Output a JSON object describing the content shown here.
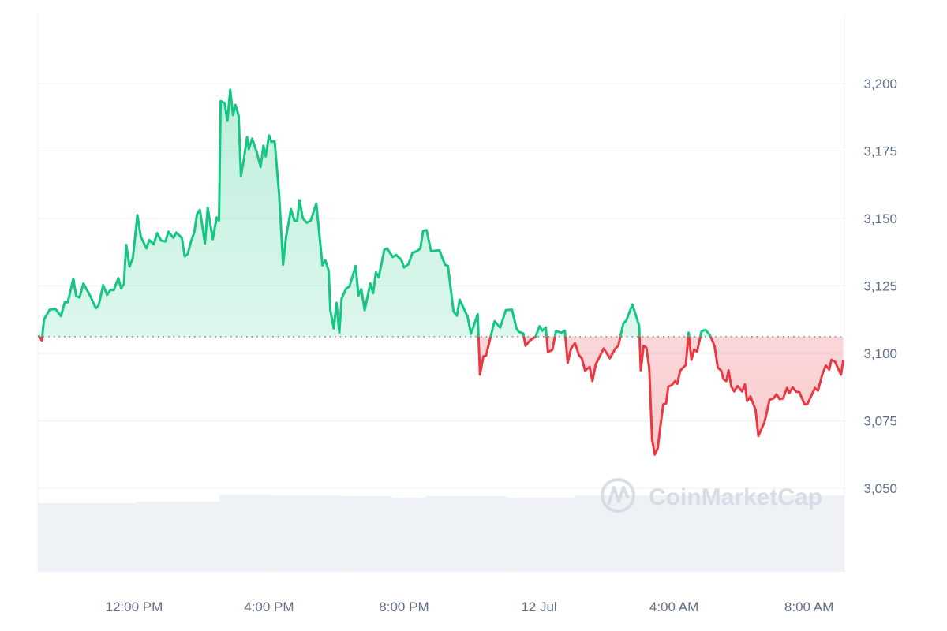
{
  "chart_data": {
    "type": "line",
    "title": "",
    "xlabel": "",
    "ylabel": "",
    "ylim": [
      3025,
      3225
    ],
    "y_ticks": [
      "3,200",
      "3,175",
      "3,150",
      "3,125",
      "3,100",
      "3,075",
      "3,050"
    ],
    "y_tick_values": [
      3200,
      3175,
      3150,
      3125,
      3100,
      3075,
      3050
    ],
    "x_ticks": [
      "12:00 PM",
      "4:00 PM",
      "8:00 PM",
      "12 Jul",
      "4:00 AM",
      "8:00 AM"
    ],
    "x_tick_times": [
      "11 Jul 12:00",
      "11 Jul 16:00",
      "11 Jul 20:00",
      "12 Jul 00:00",
      "12 Jul 04:00",
      "12 Jul 08:00"
    ],
    "xlim": [
      "11 Jul 09:09",
      "12 Jul 09:03"
    ],
    "grid": "horizontal",
    "y_axis_side": "right",
    "baseline": 3106.2,
    "colors": {
      "above": "#16c784",
      "below": "#ea3943",
      "volume": "#eef1f5",
      "baseline": "#808a9d"
    },
    "watermark": "CoinMarketCap",
    "points": [
      [
        "11 Jul 09:10",
        3106.7
      ],
      [
        "11 Jul 09:16",
        3104.8
      ],
      [
        "11 Jul 09:20",
        3112.6
      ],
      [
        "11 Jul 09:30",
        3116.2
      ],
      [
        "11 Jul 09:40",
        3116.5
      ],
      [
        "11 Jul 09:50",
        3113.8
      ],
      [
        "11 Jul 09:57",
        3119.1
      ],
      [
        "11 Jul 10:02",
        3118.9
      ],
      [
        "11 Jul 10:12",
        3127.7
      ],
      [
        "11 Jul 10:17",
        3121.3
      ],
      [
        "11 Jul 10:23",
        3120.7
      ],
      [
        "11 Jul 10:30",
        3125.9
      ],
      [
        "11 Jul 10:43",
        3120.9
      ],
      [
        "11 Jul 10:52",
        3116.7
      ],
      [
        "11 Jul 10:57",
        3117.8
      ],
      [
        "11 Jul 11:05",
        3125.3
      ],
      [
        "11 Jul 11:12",
        3121.7
      ],
      [
        "11 Jul 11:18",
        3123.5
      ],
      [
        "11 Jul 11:24",
        3123.5
      ],
      [
        "11 Jul 11:32",
        3127.9
      ],
      [
        "11 Jul 11:37",
        3124.1
      ],
      [
        "11 Jul 11:42",
        3125.7
      ],
      [
        "11 Jul 11:46",
        3140.2
      ],
      [
        "11 Jul 11:52",
        3132.1
      ],
      [
        "11 Jul 11:58",
        3135.5
      ],
      [
        "11 Jul 12:06",
        3151.3
      ],
      [
        "11 Jul 12:12",
        3143.3
      ],
      [
        "11 Jul 12:22",
        3138.9
      ],
      [
        "11 Jul 12:27",
        3142.0
      ],
      [
        "11 Jul 12:35",
        3140.4
      ],
      [
        "11 Jul 12:41",
        3144.6
      ],
      [
        "11 Jul 12:48",
        3141.8
      ],
      [
        "11 Jul 12:56",
        3141.5
      ],
      [
        "11 Jul 13:01",
        3145.1
      ],
      [
        "11 Jul 13:10",
        3142.8
      ],
      [
        "11 Jul 13:15",
        3144.8
      ],
      [
        "11 Jul 13:25",
        3142.8
      ],
      [
        "11 Jul 13:30",
        3136.0
      ],
      [
        "11 Jul 13:35",
        3136.7
      ],
      [
        "11 Jul 13:42",
        3142.0
      ],
      [
        "11 Jul 13:47",
        3144.8
      ],
      [
        "11 Jul 13:52",
        3151.6
      ],
      [
        "11 Jul 13:57",
        3153.2
      ],
      [
        "11 Jul 14:06",
        3140.7
      ],
      [
        "11 Jul 14:11",
        3154.0
      ],
      [
        "11 Jul 14:20",
        3142.3
      ],
      [
        "11 Jul 14:27",
        3150.4
      ],
      [
        "11 Jul 14:31",
        3149.2
      ],
      [
        "11 Jul 14:34",
        3193.5
      ],
      [
        "11 Jul 14:41",
        3192.8
      ],
      [
        "11 Jul 14:46",
        3186.2
      ],
      [
        "11 Jul 14:51",
        3197.7
      ],
      [
        "11 Jul 14:56",
        3188.3
      ],
      [
        "11 Jul 15:00",
        3192.1
      ],
      [
        "11 Jul 15:06",
        3188.2
      ],
      [
        "11 Jul 15:10",
        3165.7
      ],
      [
        "11 Jul 15:15",
        3171.6
      ],
      [
        "11 Jul 15:21",
        3180.2
      ],
      [
        "11 Jul 15:24",
        3175.7
      ],
      [
        "11 Jul 15:30",
        3179.6
      ],
      [
        "11 Jul 15:38",
        3174.7
      ],
      [
        "11 Jul 15:45",
        3169.1
      ],
      [
        "11 Jul 15:50",
        3177.0
      ],
      [
        "11 Jul 15:54",
        3173.0
      ],
      [
        "11 Jul 16:00",
        3180.8
      ],
      [
        "11 Jul 16:04",
        3178.4
      ],
      [
        "11 Jul 16:10",
        3178.6
      ],
      [
        "11 Jul 16:18",
        3158.9
      ],
      [
        "11 Jul 16:25",
        3132.9
      ],
      [
        "11 Jul 16:30",
        3142.8
      ],
      [
        "11 Jul 16:39",
        3153.5
      ],
      [
        "11 Jul 16:45",
        3149.2
      ],
      [
        "11 Jul 16:50",
        3149.2
      ],
      [
        "11 Jul 16:54",
        3156.8
      ],
      [
        "11 Jul 17:00",
        3150.1
      ],
      [
        "11 Jul 17:07",
        3148.4
      ],
      [
        "11 Jul 17:14",
        3149.2
      ],
      [
        "11 Jul 17:24",
        3155.5
      ],
      [
        "11 Jul 17:35",
        3132.6
      ],
      [
        "11 Jul 17:40",
        3134.5
      ],
      [
        "11 Jul 17:46",
        3130.6
      ],
      [
        "11 Jul 17:49",
        3116.0
      ],
      [
        "11 Jul 17:55",
        3109.2
      ],
      [
        "11 Jul 18:00",
        3118.7
      ],
      [
        "11 Jul 18:05",
        3107.7
      ],
      [
        "11 Jul 18:09",
        3120.4
      ],
      [
        "11 Jul 18:17",
        3124.0
      ],
      [
        "11 Jul 18:23",
        3124.8
      ],
      [
        "11 Jul 18:34",
        3132.4
      ],
      [
        "11 Jul 18:39",
        3121.4
      ],
      [
        "11 Jul 18:44",
        3123.8
      ],
      [
        "11 Jul 18:50",
        3116.0
      ],
      [
        "11 Jul 19:00",
        3126.0
      ],
      [
        "11 Jul 19:05",
        3122.3
      ],
      [
        "11 Jul 19:10",
        3130.1
      ],
      [
        "11 Jul 19:15",
        3128.2
      ],
      [
        "11 Jul 19:25",
        3138.4
      ],
      [
        "11 Jul 19:30",
        3138.9
      ],
      [
        "11 Jul 19:40",
        3135.7
      ],
      [
        "11 Jul 19:46",
        3136.5
      ],
      [
        "11 Jul 19:55",
        3134.7
      ],
      [
        "11 Jul 20:00",
        3131.8
      ],
      [
        "11 Jul 20:08",
        3133.1
      ],
      [
        "11 Jul 20:15",
        3137.3
      ],
      [
        "11 Jul 20:23",
        3137.9
      ],
      [
        "11 Jul 20:29",
        3138.9
      ],
      [
        "11 Jul 20:34",
        3145.4
      ],
      [
        "11 Jul 20:40",
        3145.7
      ],
      [
        "11 Jul 20:48",
        3137.9
      ],
      [
        "11 Jul 21:03",
        3138.2
      ],
      [
        "11 Jul 21:13",
        3132.8
      ],
      [
        "11 Jul 21:18",
        3132.4
      ],
      [
        "11 Jul 21:28",
        3115.5
      ],
      [
        "11 Jul 21:34",
        3114.0
      ],
      [
        "11 Jul 21:39",
        3119.9
      ],
      [
        "11 Jul 21:53",
        3113.6
      ],
      [
        "11 Jul 21:59",
        3107.2
      ],
      [
        "11 Jul 22:11",
        3114.5
      ],
      [
        "11 Jul 22:15",
        3092.1
      ],
      [
        "11 Jul 22:21",
        3098.9
      ],
      [
        "11 Jul 22:26",
        3099.2
      ],
      [
        "11 Jul 22:34",
        3106.2
      ],
      [
        "11 Jul 22:41",
        3111.9
      ],
      [
        "11 Jul 22:51",
        3109.6
      ],
      [
        "11 Jul 23:01",
        3116.0
      ],
      [
        "11 Jul 23:12",
        3116.2
      ],
      [
        "11 Jul 23:20",
        3109.2
      ],
      [
        "11 Jul 23:24",
        3108.0
      ],
      [
        "11 Jul 23:32",
        3107.4
      ],
      [
        "11 Jul 23:36",
        3102.8
      ],
      [
        "11 Jul 23:44",
        3104.8
      ],
      [
        "11 Jul 23:54",
        3106.2
      ],
      [
        "12 Jul 00:01",
        3110.1
      ],
      [
        "12 Jul 00:06",
        3108.4
      ],
      [
        "12 Jul 00:12",
        3109.6
      ],
      [
        "12 Jul 00:16",
        3100.4
      ],
      [
        "12 Jul 00:24",
        3101.4
      ],
      [
        "12 Jul 00:30",
        3108.2
      ],
      [
        "12 Jul 00:40",
        3107.7
      ],
      [
        "12 Jul 00:46",
        3108.4
      ],
      [
        "12 Jul 00:51",
        3096.5
      ],
      [
        "12 Jul 00:57",
        3101.8
      ],
      [
        "12 Jul 01:04",
        3103.8
      ],
      [
        "12 Jul 01:11",
        3099.4
      ],
      [
        "12 Jul 01:16",
        3098.2
      ],
      [
        "12 Jul 01:22",
        3093.6
      ],
      [
        "12 Jul 01:30",
        3095.0
      ],
      [
        "12 Jul 01:35",
        3089.7
      ],
      [
        "12 Jul 01:41",
        3096.0
      ],
      [
        "12 Jul 01:55",
        3101.8
      ],
      [
        "12 Jul 02:06",
        3098.2
      ],
      [
        "12 Jul 02:16",
        3101.8
      ],
      [
        "12 Jul 02:21",
        3102.8
      ],
      [
        "12 Jul 02:30",
        3111.1
      ],
      [
        "12 Jul 02:35",
        3112.1
      ],
      [
        "12 Jul 02:46",
        3118.1
      ],
      [
        "12 Jul 02:58",
        3110.3
      ],
      [
        "12 Jul 03:01",
        3093.7
      ],
      [
        "12 Jul 03:06",
        3102.8
      ],
      [
        "12 Jul 03:11",
        3102.1
      ],
      [
        "12 Jul 03:16",
        3094.5
      ],
      [
        "12 Jul 03:21",
        3068.2
      ],
      [
        "12 Jul 03:26",
        3062.5
      ],
      [
        "12 Jul 03:31",
        3064.8
      ],
      [
        "12 Jul 03:36",
        3073.1
      ],
      [
        "12 Jul 03:41",
        3081.1
      ],
      [
        "12 Jul 03:46",
        3081.4
      ],
      [
        "12 Jul 03:50",
        3087.7
      ],
      [
        "12 Jul 03:56",
        3088.2
      ],
      [
        "12 Jul 04:02",
        3089.7
      ],
      [
        "12 Jul 04:06",
        3088.7
      ],
      [
        "12 Jul 04:11",
        3093.6
      ],
      [
        "12 Jul 04:21",
        3095.7
      ],
      [
        "12 Jul 04:26",
        3107.7
      ],
      [
        "12 Jul 04:31",
        3097.6
      ],
      [
        "12 Jul 04:36",
        3101.4
      ],
      [
        "12 Jul 04:41",
        3100.6
      ],
      [
        "12 Jul 04:49",
        3108.2
      ],
      [
        "12 Jul 04:56",
        3108.7
      ],
      [
        "12 Jul 05:04",
        3106.7
      ],
      [
        "12 Jul 05:12",
        3102.8
      ],
      [
        "12 Jul 05:18",
        3094.7
      ],
      [
        "12 Jul 05:24",
        3093.6
      ],
      [
        "12 Jul 05:28",
        3090.4
      ],
      [
        "12 Jul 05:33",
        3089.7
      ],
      [
        "12 Jul 05:37",
        3093.7
      ],
      [
        "12 Jul 05:42",
        3087.7
      ],
      [
        "12 Jul 05:47",
        3085.9
      ],
      [
        "12 Jul 05:53",
        3087.9
      ],
      [
        "12 Jul 06:01",
        3085.9
      ],
      [
        "12 Jul 06:06",
        3088.5
      ],
      [
        "12 Jul 06:10",
        3082.3
      ],
      [
        "12 Jul 06:16",
        3084.0
      ],
      [
        "12 Jul 06:25",
        3079.1
      ],
      [
        "12 Jul 06:30",
        3069.4
      ],
      [
        "12 Jul 06:41",
        3074.5
      ],
      [
        "12 Jul 06:50",
        3082.8
      ],
      [
        "12 Jul 06:57",
        3083.3
      ],
      [
        "12 Jul 07:02",
        3084.8
      ],
      [
        "12 Jul 07:08",
        3083.0
      ],
      [
        "12 Jul 07:14",
        3083.3
      ],
      [
        "12 Jul 07:21",
        3087.2
      ],
      [
        "12 Jul 07:25",
        3085.3
      ],
      [
        "12 Jul 07:31",
        3087.4
      ],
      [
        "12 Jul 07:37",
        3085.8
      ],
      [
        "12 Jul 07:43",
        3085.6
      ],
      [
        "12 Jul 07:52",
        3081.1
      ],
      [
        "12 Jul 07:57",
        3081.1
      ],
      [
        "12 Jul 08:04",
        3084.3
      ],
      [
        "12 Jul 08:11",
        3087.2
      ],
      [
        "12 Jul 08:16",
        3086.2
      ],
      [
        "12 Jul 08:24",
        3092.4
      ],
      [
        "12 Jul 08:30",
        3095.5
      ],
      [
        "12 Jul 08:36",
        3094.0
      ],
      [
        "12 Jul 08:40",
        3097.6
      ],
      [
        "12 Jul 08:46",
        3097.0
      ],
      [
        "12 Jul 08:57",
        3092.1
      ],
      [
        "12 Jul 09:01",
        3097.6
      ]
    ],
    "volume_relative": [
      [
        "11 Jul 09:09",
        "11 Jul 12:03",
        0.89
      ],
      [
        "11 Jul 12:03",
        "11 Jul 14:32",
        0.91
      ],
      [
        "11 Jul 14:32",
        "11 Jul 16:06",
        1.0
      ],
      [
        "11 Jul 16:06",
        "11 Jul 18:08",
        0.99
      ],
      [
        "11 Jul 18:08",
        "11 Jul 19:39",
        0.98
      ],
      [
        "11 Jul 19:39",
        "11 Jul 20:39",
        0.96
      ],
      [
        "11 Jul 20:39",
        "11 Jul 23:02",
        0.98
      ],
      [
        "11 Jul 23:02",
        "12 Jul 01:03",
        0.96
      ],
      [
        "12 Jul 01:03",
        "12 Jul 09:03",
        0.99
      ]
    ]
  }
}
